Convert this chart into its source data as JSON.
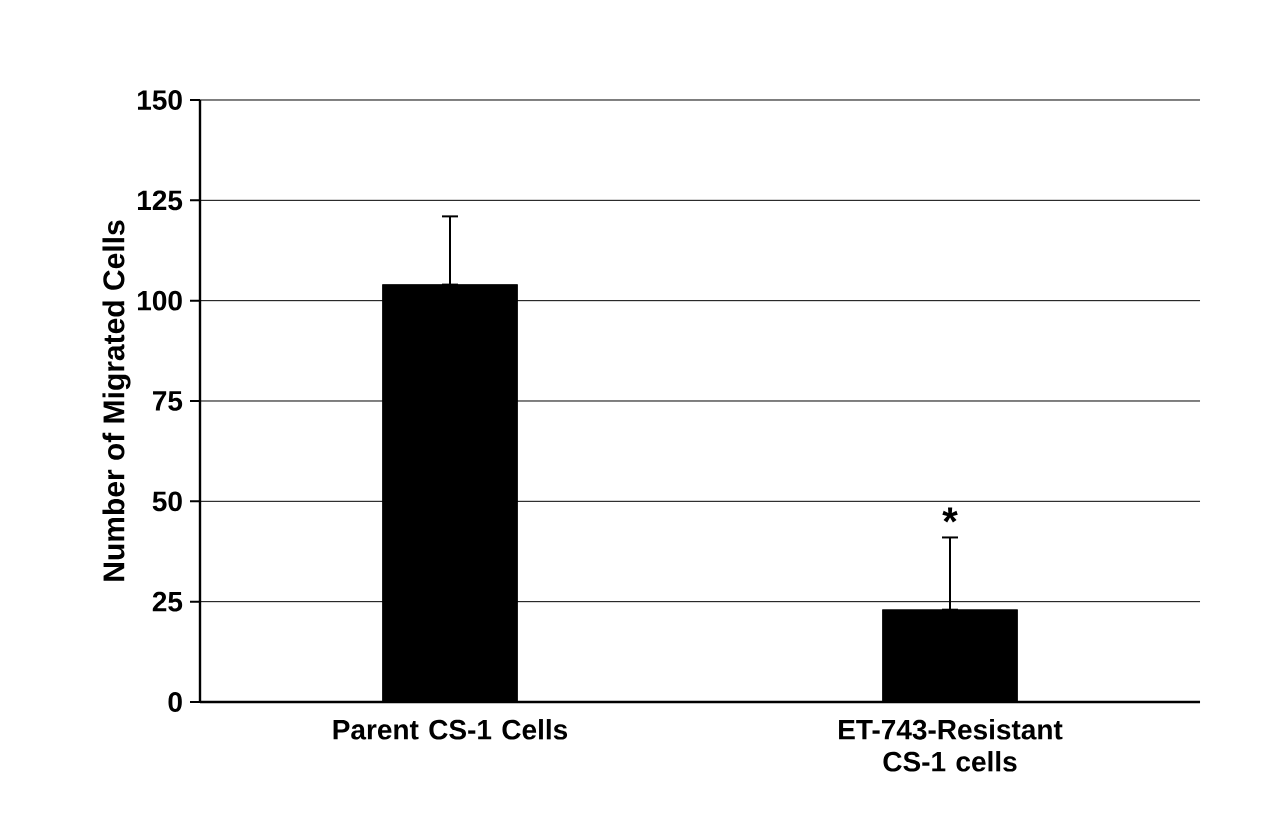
{
  "chart_data": {
    "type": "bar",
    "ylabel": "Number of Migrated Cells",
    "categories": [
      "Parent CS-1 Cells",
      "ET-743-Resistant CS-1 cells"
    ],
    "values": [
      104,
      23
    ],
    "errors": [
      [
        104,
        121
      ],
      [
        23,
        41
      ]
    ],
    "color": "#000000",
    "ylim": [
      0,
      150
    ],
    "yticks": [
      0,
      25,
      50,
      75,
      100,
      125,
      150
    ],
    "grid": "y",
    "annotations": [
      {
        "text": "*",
        "x": "ET-743-Resistant CS-1 cells",
        "y": 41
      }
    ]
  }
}
